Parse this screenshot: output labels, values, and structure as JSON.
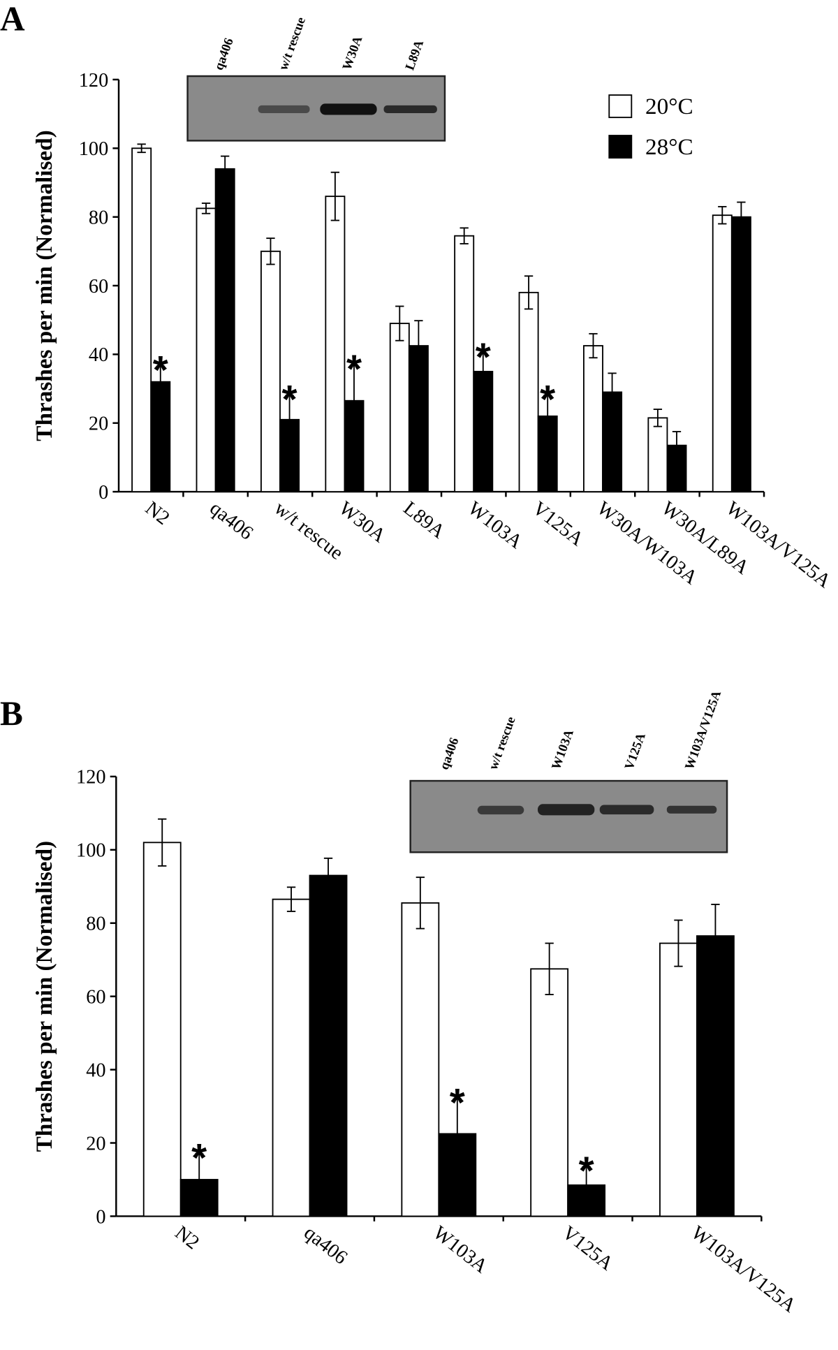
{
  "chart_data": [
    {
      "type": "bar",
      "panel": "A",
      "ylabel": "Thrashes  per min (Normalised)",
      "inset_labels": [
        "qa406",
        "w/t rescue",
        "W30A",
        "L89A"
      ],
      "categories": [
        "N2",
        "qa406",
        "w/t rescue",
        "W30A",
        "L89A",
        "W103A",
        "V125A",
        "W30A/W103A",
        "W30A/L89A",
        "W103A/V125A"
      ],
      "series": [
        {
          "name": "20°C",
          "color": "#ffffff",
          "values": [
            100,
            82.5,
            70,
            86,
            49,
            74.5,
            58,
            42.5,
            21.5,
            80.5
          ],
          "errors": [
            1.2,
            1.5,
            3.8,
            7,
            5,
            2.3,
            4.8,
            3.5,
            2.5,
            2.5
          ]
        },
        {
          "name": "28°C",
          "color": "#000000",
          "values": [
            32,
            94,
            21,
            26.5,
            42.5,
            35,
            22,
            29,
            13.5,
            80
          ],
          "errors": [
            4.5,
            3.7,
            7,
            10.3,
            7.3,
            5.3,
            6,
            5.5,
            4,
            4.3
          ],
          "significance": [
            "*",
            null,
            "*",
            "*",
            null,
            "*",
            "*",
            null,
            null,
            null
          ]
        }
      ],
      "ylim": [
        0,
        120
      ],
      "yticks": [
        0,
        20,
        40,
        60,
        80,
        100,
        120
      ],
      "legend": "upper right"
    },
    {
      "type": "bar",
      "panel": "B",
      "ylabel": "Thrashes  per min (Normalised)",
      "inset_labels": [
        "qa406",
        "w/t rescue",
        "W103A",
        "V125A",
        "W103A/V125A"
      ],
      "categories": [
        "N2",
        "qa406",
        "W103A",
        "V125A",
        "W103A/V125A"
      ],
      "series": [
        {
          "color": "#ffffff",
          "values": [
            102,
            86.5,
            85.5,
            67.5,
            74.5
          ],
          "errors": [
            6.4,
            3.3,
            7,
            7,
            6.3
          ]
        },
        {
          "color": "#000000",
          "values": [
            10,
            93,
            22.5,
            8.5,
            76.5
          ],
          "errors": [
            7,
            4.7,
            9.5,
            5,
            8.6
          ],
          "significance": [
            "*",
            null,
            "*",
            "*",
            null
          ]
        }
      ],
      "ylim": [
        0,
        120
      ],
      "yticks": [
        0,
        20,
        40,
        60,
        80,
        100,
        120
      ]
    }
  ]
}
